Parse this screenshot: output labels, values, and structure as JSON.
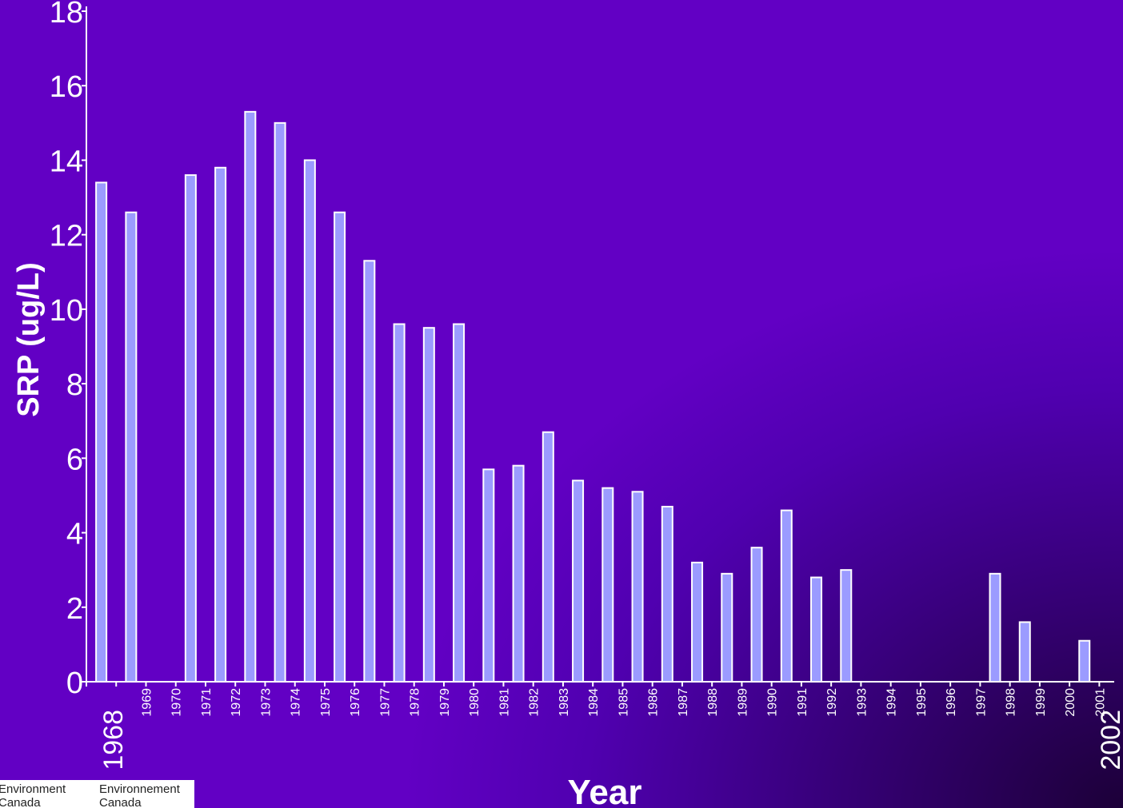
{
  "chart_data": {
    "type": "bar",
    "xlabel": "Year",
    "ylabel": "SRP (ug/L)",
    "ylim": [
      0,
      18
    ],
    "yticks": [
      0,
      2,
      4,
      6,
      8,
      10,
      12,
      14,
      16,
      18
    ],
    "x_range_labels": [
      "1968",
      "2002"
    ],
    "categories": [
      "1968",
      "1969",
      "1970",
      "1971",
      "1972",
      "1973",
      "1974",
      "1975",
      "1976",
      "1977",
      "1978",
      "1979",
      "1980",
      "1981",
      "1982",
      "1983",
      "1984",
      "1985",
      "1986",
      "1987",
      "1988",
      "1989",
      "1990",
      "1991",
      "1992",
      "1993",
      "1994",
      "1995",
      "1996",
      "1997",
      "1998",
      "1999",
      "2000",
      "2001"
    ],
    "tick_labels": [
      "",
      "1969",
      "1970",
      "1971",
      "1972",
      "1973",
      "1974",
      "1975",
      "1976",
      "1977",
      "1978",
      "1979",
      "1980",
      "1981",
      "1982",
      "1983",
      "1984",
      "1985",
      "1986",
      "1987",
      "1988",
      "1989",
      "1990",
      "1991",
      "1992",
      "1993",
      "1994",
      "1995",
      "1996",
      "1997",
      "1998",
      "1999",
      "2000",
      "2001"
    ],
    "values": [
      13.4,
      12.6,
      null,
      13.6,
      13.8,
      15.3,
      15.0,
      14.0,
      12.6,
      11.3,
      9.6,
      9.5,
      9.6,
      5.7,
      5.8,
      6.7,
      5.4,
      5.2,
      5.1,
      4.7,
      3.2,
      2.9,
      3.6,
      4.6,
      2.8,
      3.0,
      null,
      null,
      null,
      null,
      2.9,
      1.6,
      null,
      1.1
    ],
    "bar_color": "#9b9bff",
    "background_color": "#5a00b8",
    "grid": false,
    "legend": false
  },
  "logo": {
    "line1_en": "Environment",
    "line1_fr": "Environnement",
    "line2_en": "Canada",
    "line2_fr": "Canada"
  }
}
